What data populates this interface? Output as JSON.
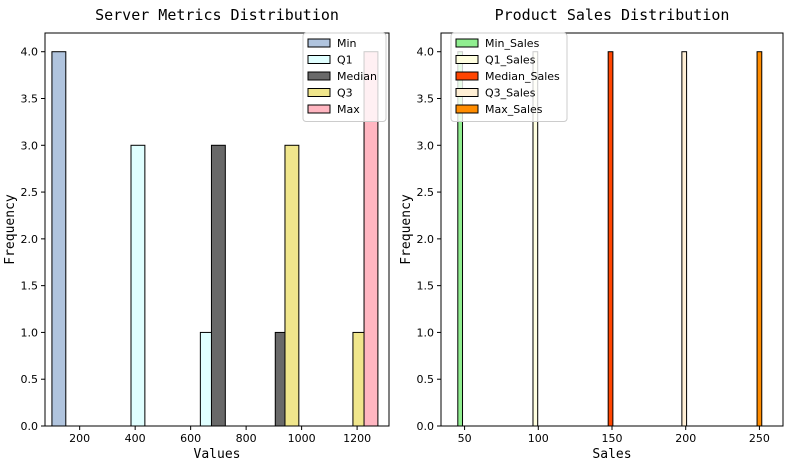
{
  "chart_data": [
    {
      "type": "bar",
      "title": "Server Metrics Distribution",
      "xlabel": "Values",
      "ylabel": "Frequency",
      "xlim": [
        75,
        1315
      ],
      "ylim": [
        0,
        4.2
      ],
      "xticks": [
        200,
        400,
        600,
        800,
        1000,
        1200
      ],
      "yticks": [
        0.0,
        0.5,
        1.0,
        1.5,
        2.0,
        2.5,
        3.0,
        3.5,
        4.0
      ],
      "legend_position": "top-right",
      "bar_width": 50,
      "series": [
        {
          "name": "Min",
          "color": "#B0C4DE",
          "bars": [
            {
              "x": 125,
              "count": 4
            }
          ]
        },
        {
          "name": "Q1",
          "color": "#E0FFFF",
          "bars": [
            {
              "x": 410,
              "count": 3
            },
            {
              "x": 660,
              "count": 1
            }
          ]
        },
        {
          "name": "Median",
          "color": "#696969",
          "bars": [
            {
              "x": 700,
              "count": 3
            },
            {
              "x": 930,
              "count": 1
            }
          ]
        },
        {
          "name": "Q3",
          "color": "#F0E68C",
          "bars": [
            {
              "x": 965,
              "count": 3
            },
            {
              "x": 1210,
              "count": 1
            }
          ]
        },
        {
          "name": "Max",
          "color": "#FFB6C1",
          "bars": [
            {
              "x": 1250,
              "count": 4
            }
          ]
        }
      ]
    },
    {
      "type": "bar",
      "title": "Product Sales Distribution",
      "xlabel": "Sales",
      "ylabel": "Frequency",
      "xlim": [
        34,
        266
      ],
      "ylim": [
        0,
        4.2
      ],
      "xticks": [
        50,
        100,
        150,
        200,
        250
      ],
      "yticks": [
        0.0,
        0.5,
        1.0,
        1.5,
        2.0,
        2.5,
        3.0,
        3.5,
        4.0
      ],
      "legend_position": "top-left",
      "bar_width": 3.2,
      "series": [
        {
          "name": "Min_Sales",
          "color": "#90EE90",
          "bars": [
            {
              "x": 47,
              "count": 4
            }
          ]
        },
        {
          "name": "Q1_Sales",
          "color": "#FFFFE0",
          "bars": [
            {
              "x": 98,
              "count": 4
            }
          ]
        },
        {
          "name": "Median_Sales",
          "color": "#FF4500",
          "bars": [
            {
              "x": 149,
              "count": 4
            }
          ]
        },
        {
          "name": "Q3_Sales",
          "color": "#FFEFD5",
          "bars": [
            {
              "x": 199,
              "count": 4
            }
          ]
        },
        {
          "name": "Max_Sales",
          "color": "#FF8C00",
          "bars": [
            {
              "x": 250,
              "count": 4
            }
          ]
        }
      ]
    }
  ]
}
